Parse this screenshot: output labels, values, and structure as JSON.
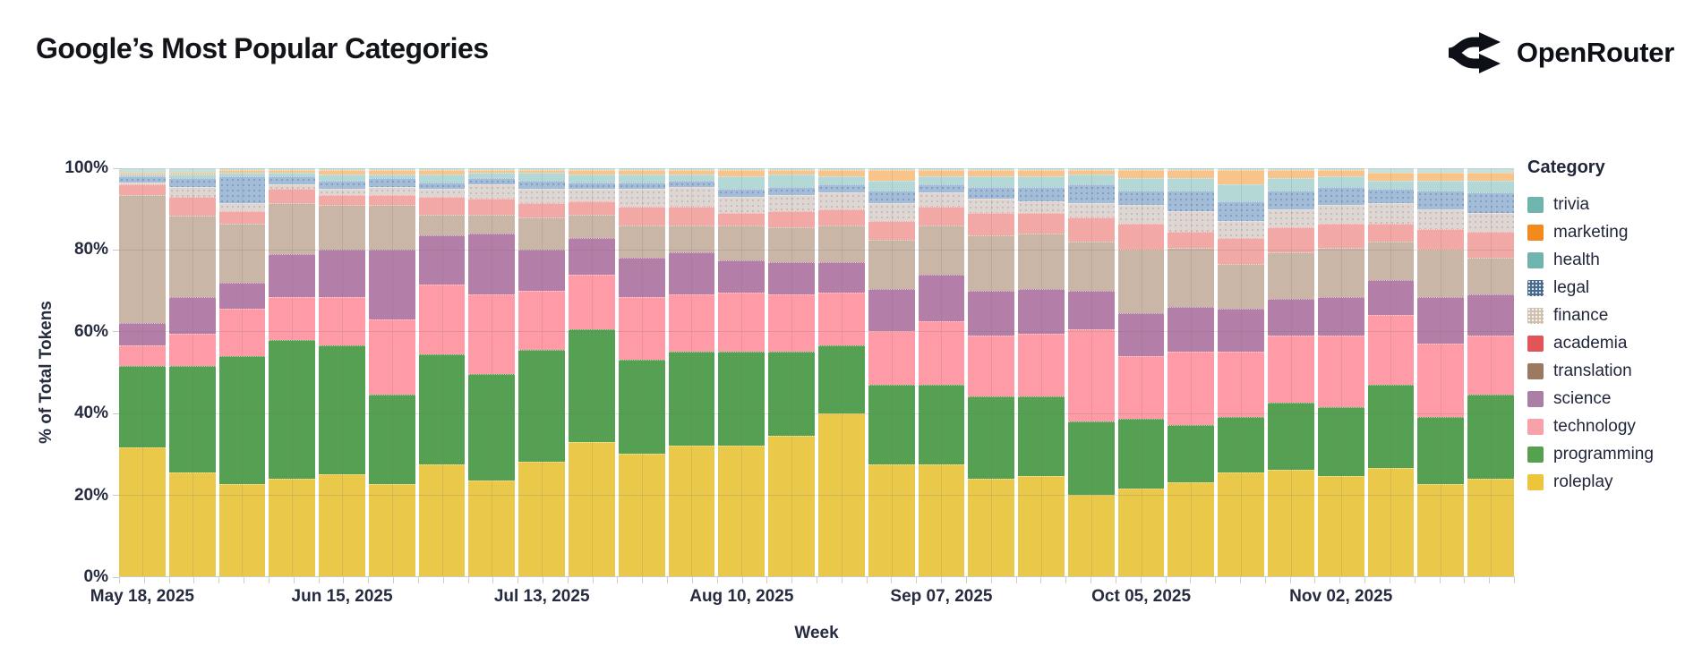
{
  "header": {
    "title": "Google’s Most Popular Categories",
    "brand": "OpenRouter"
  },
  "chart_data": {
    "type": "bar",
    "stacked": true,
    "title": "Google’s Most Popular Categories",
    "xlabel": "Week",
    "ylabel": "% of Total Tokens",
    "ylim": [
      0,
      100
    ],
    "y_ticks": [
      "0%",
      "20%",
      "40%",
      "60%",
      "80%",
      "100%"
    ],
    "grid": true,
    "legend_position": "right",
    "legend_title": "Category",
    "x_tick_labels": [
      "May 18, 2025",
      "Jun 15, 2025",
      "Jul 13, 2025",
      "Aug 10, 2025",
      "Sep 07, 2025",
      "Oct 05, 2025",
      "Nov 02, 2025"
    ],
    "x_label_every": 4,
    "legend_order": [
      "trivia",
      "marketing",
      "health",
      "legal",
      "finance",
      "academia",
      "translation",
      "science",
      "technology",
      "programming",
      "roleplay"
    ],
    "categories": {
      "trivia": {
        "legend_color": "#6fb5ad",
        "bar_color": "#c5e1de",
        "pattern": null
      },
      "marketing": {
        "legend_color": "#f28a1e",
        "bar_color": "#f8c489",
        "pattern": null
      },
      "health": {
        "legend_color": "#6fb5ad",
        "bar_color": "#b3d8d5",
        "pattern": null
      },
      "legal": {
        "legend_color": "#47698c",
        "bar_color": "#a3bdd8",
        "pattern": "legal"
      },
      "finance": {
        "legend_color": "#cfc0ae",
        "bar_color": "#ded6d2",
        "pattern": "finance"
      },
      "academia": {
        "legend_color": "#e25457",
        "bar_color": "#f2a9a6",
        "pattern": null
      },
      "translation": {
        "legend_color": "#9c7a62",
        "bar_color": "#c9b6a6",
        "pattern": null
      },
      "science": {
        "legend_color": "#ab7fa5",
        "bar_color": "#b37fa8",
        "pattern": null
      },
      "technology": {
        "legend_color": "#f9a1a8",
        "bar_color": "#fe9ba6",
        "pattern": null
      },
      "programming": {
        "legend_color": "#55a14f",
        "bar_color": "#55a053",
        "pattern": null
      },
      "roleplay": {
        "legend_color": "#ecc53a",
        "bar_color": "#e9c84a",
        "pattern": null
      }
    },
    "weeks": [
      "May 18, 2025",
      "May 25, 2025",
      "Jun 01, 2025",
      "Jun 08, 2025",
      "Jun 15, 2025",
      "Jun 22, 2025",
      "Jun 29, 2025",
      "Jul 06, 2025",
      "Jul 13, 2025",
      "Jul 20, 2025",
      "Jul 27, 2025",
      "Aug 03, 2025",
      "Aug 10, 2025",
      "Aug 17, 2025",
      "Aug 24, 2025",
      "Aug 31, 2025",
      "Sep 07, 2025",
      "Sep 14, 2025",
      "Sep 21, 2025",
      "Sep 28, 2025",
      "Oct 05, 2025",
      "Oct 12, 2025",
      "Oct 19, 2025",
      "Oct 26, 2025",
      "Nov 02, 2025",
      "Nov 09, 2025",
      "Nov 16, 2025",
      "Nov 23, 2025"
    ],
    "stack_order_bottom_to_top": [
      "roleplay",
      "programming",
      "technology",
      "science",
      "translation",
      "academia",
      "finance",
      "legal",
      "health",
      "marketing",
      "trivia"
    ],
    "series": [
      {
        "name": "roleplay",
        "values": [
          31.5,
          25.5,
          22.5,
          24,
          25,
          22.5,
          27.5,
          23.5,
          28,
          33,
          30,
          32,
          32,
          34.5,
          40,
          27.5,
          27.5,
          24,
          24.5,
          20,
          21.5,
          23,
          25.5,
          26,
          24.5,
          26.5,
          22.5,
          24
        ]
      },
      {
        "name": "programming",
        "values": [
          20,
          26,
          31.5,
          34,
          31.5,
          22,
          27,
          26,
          27.5,
          27.5,
          23,
          23,
          23,
          20.5,
          16.5,
          19.5,
          19.5,
          20,
          19.5,
          18,
          17,
          14,
          13.5,
          16.5,
          17,
          20.5,
          16.5,
          20.5
        ]
      },
      {
        "name": "technology",
        "values": [
          5,
          8,
          11.5,
          10.5,
          12,
          18.5,
          17,
          19.5,
          14.5,
          13.5,
          15.5,
          14,
          14.5,
          14,
          13,
          13,
          15.5,
          15,
          15.5,
          22.5,
          15.5,
          18,
          16,
          16.5,
          17.5,
          17,
          18,
          14.5
        ]
      },
      {
        "name": "science",
        "values": [
          5.5,
          9,
          6.5,
          10.5,
          11.5,
          17,
          12,
          15,
          10,
          9,
          9.5,
          10.5,
          8,
          8,
          7.5,
          10.5,
          11.5,
          11,
          11,
          9.5,
          10.5,
          11,
          10.5,
          9,
          9.5,
          8.5,
          11.5,
          10
        ]
      },
      {
        "name": "translation",
        "values": [
          31.5,
          20,
          14.5,
          12.5,
          11,
          11,
          5,
          4.5,
          8,
          5.5,
          8,
          6.5,
          8.5,
          8.5,
          9,
          12,
          12,
          13.5,
          13.5,
          12,
          15.5,
          14.5,
          11,
          11.5,
          12,
          9.5,
          11.5,
          9
        ]
      },
      {
        "name": "academia",
        "values": [
          2.5,
          4.5,
          3,
          3.5,
          2.5,
          2.5,
          4.5,
          4,
          3.5,
          3.5,
          4.5,
          4.5,
          3,
          4,
          4,
          4.5,
          4.5,
          5.5,
          5,
          6,
          6.5,
          4,
          6.5,
          6,
          6,
          4.5,
          5,
          6.5
        ]
      },
      {
        "name": "finance",
        "values": [
          0.5,
          2.5,
          2,
          1,
          1.5,
          2,
          2,
          3.5,
          3.5,
          3,
          4.5,
          5,
          4,
          4,
          4,
          4.5,
          3.5,
          3.5,
          3,
          3.5,
          4.5,
          5,
          4,
          4.5,
          4.5,
          5,
          5,
          4.5
        ]
      },
      {
        "name": "legal",
        "values": [
          1.5,
          2,
          6.5,
          2,
          2,
          2,
          1.5,
          1.5,
          2,
          1.5,
          1.5,
          1.5,
          2,
          2,
          2,
          3,
          2,
          3,
          3.5,
          4.5,
          3.5,
          5,
          5,
          4.5,
          4.5,
          3.5,
          4.5,
          5
        ]
      },
      {
        "name": "health",
        "values": [
          0.5,
          1,
          1,
          1,
          1.5,
          1,
          2,
          1.5,
          2,
          2,
          2,
          1.5,
          3,
          3,
          2,
          2.5,
          2,
          2.5,
          2.5,
          2.5,
          3,
          3,
          4,
          3,
          2.5,
          2,
          2.5,
          3
        ]
      },
      {
        "name": "marketing",
        "values": [
          0.5,
          0.5,
          0.5,
          0.5,
          1,
          1,
          1,
          0.5,
          0.5,
          1,
          1,
          1,
          1.5,
          1,
          1.5,
          2.5,
          1.5,
          1.5,
          1.5,
          1,
          2,
          2,
          3.5,
          2,
          1.5,
          2,
          2,
          2
        ]
      },
      {
        "name": "trivia",
        "values": [
          1,
          1,
          0.5,
          0.5,
          0.5,
          0.5,
          0.5,
          0.5,
          0.5,
          0.5,
          0.5,
          0.5,
          0.5,
          0.5,
          0.5,
          0.5,
          0.5,
          0.5,
          0.5,
          0.5,
          0.5,
          0.5,
          0.5,
          0.5,
          0.5,
          1,
          1,
          1
        ]
      }
    ]
  }
}
